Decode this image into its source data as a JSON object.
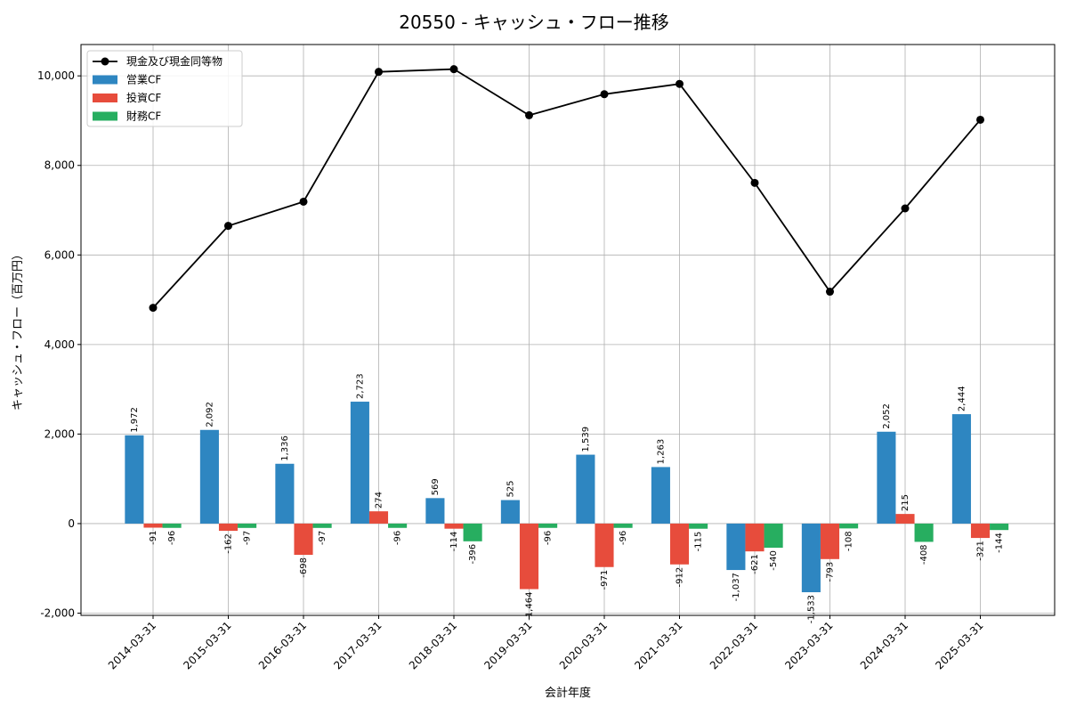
{
  "chart_data": {
    "type": "bar",
    "title": "20550 - キャッシュ・フロー推移",
    "xlabel": "会計年度",
    "ylabel": "キャッシュ・フロー（百万円）",
    "ylim": [
      -2050,
      10700
    ],
    "yticks": [
      -2000,
      0,
      2000,
      4000,
      6000,
      8000,
      10000
    ],
    "ytick_labels": [
      "-2,000",
      "0",
      "2,000",
      "4,000",
      "6,000",
      "8,000",
      "10,000"
    ],
    "grid": true,
    "legend_position": "top-left",
    "categories": [
      "2014-03-31",
      "2015-03-31",
      "2016-03-31",
      "2017-03-31",
      "2018-03-31",
      "2019-03-31",
      "2020-03-31",
      "2021-03-31",
      "2022-03-31",
      "2023-03-31",
      "2024-03-31",
      "2025-03-31"
    ],
    "series": [
      {
        "name": "営業CF",
        "kind": "bar",
        "color": "#2e86c1",
        "values": [
          1972,
          2092,
          1336,
          2723,
          569,
          525,
          1539,
          1263,
          -1037,
          -1533,
          2052,
          2444
        ],
        "labels": [
          "1,972",
          "2,092",
          "1,336",
          "2,723",
          "569",
          "525",
          "1,539",
          "1,263",
          "-1,037",
          "-1,533",
          "2,052",
          "2,444"
        ]
      },
      {
        "name": "投資CF",
        "kind": "bar",
        "color": "#e74c3c",
        "values": [
          -91,
          -162,
          -698,
          274,
          -114,
          -1464,
          -971,
          -912,
          -621,
          -793,
          215,
          -321
        ],
        "labels": [
          "-91",
          "-162",
          "-698",
          "274",
          "-114",
          "-1,464",
          "-971",
          "-912",
          "-621",
          "-793",
          "215",
          "-321"
        ]
      },
      {
        "name": "財務CF",
        "kind": "bar",
        "color": "#27ae60",
        "values": [
          -96,
          -97,
          -97,
          -96,
          -396,
          -96,
          -96,
          -115,
          -540,
          -108,
          -408,
          -144
        ],
        "labels": [
          "-96",
          "-97",
          "-97",
          "-96",
          "-396",
          "-96",
          "-96",
          "-115",
          "-540",
          "-108",
          "-408",
          "-144"
        ]
      },
      {
        "name": "現金及び現金同等物",
        "kind": "line",
        "color": "#000000",
        "values": [
          4820,
          6650,
          7190,
          10090,
          10150,
          9120,
          9590,
          9820,
          7610,
          5180,
          7040,
          9020
        ]
      }
    ]
  }
}
